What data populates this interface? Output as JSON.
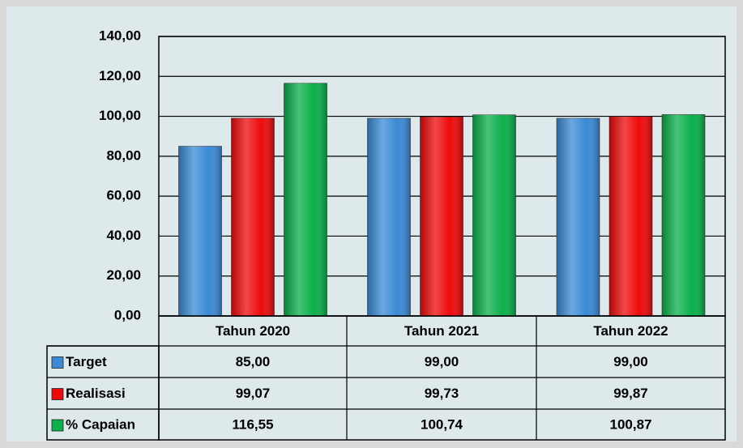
{
  "chart_data": {
    "type": "bar",
    "categories": [
      "Tahun 2020",
      "Tahun 2021",
      "Tahun 2022"
    ],
    "series": [
      {
        "name": "Target",
        "color": "#3a8ad6",
        "values": [
          85,
          99,
          99
        ],
        "value_labels": [
          "85,00",
          "99,00",
          "99,00"
        ]
      },
      {
        "name": "Realisasi",
        "color": "#ee0a0a",
        "values": [
          99.07,
          99.73,
          99.87
        ],
        "value_labels": [
          "99,07",
          "99,73",
          "99,87"
        ]
      },
      {
        "name": "% Capaian",
        "color": "#0ab04a",
        "values": [
          116.55,
          100.74,
          100.87
        ],
        "value_labels": [
          "116,55",
          "100,74",
          "100,87"
        ]
      }
    ],
    "ylim": [
      0,
      140
    ],
    "yticks": [
      {
        "value": 0,
        "label": "0,00"
      },
      {
        "value": 20,
        "label": "20,00"
      },
      {
        "value": 40,
        "label": "40,00"
      },
      {
        "value": 60,
        "label": "60,00"
      },
      {
        "value": 80,
        "label": "80,00"
      },
      {
        "value": 100,
        "label": "100,00"
      },
      {
        "value": 120,
        "label": "120,00"
      },
      {
        "value": 140,
        "label": "140,00"
      }
    ],
    "grid": true
  }
}
